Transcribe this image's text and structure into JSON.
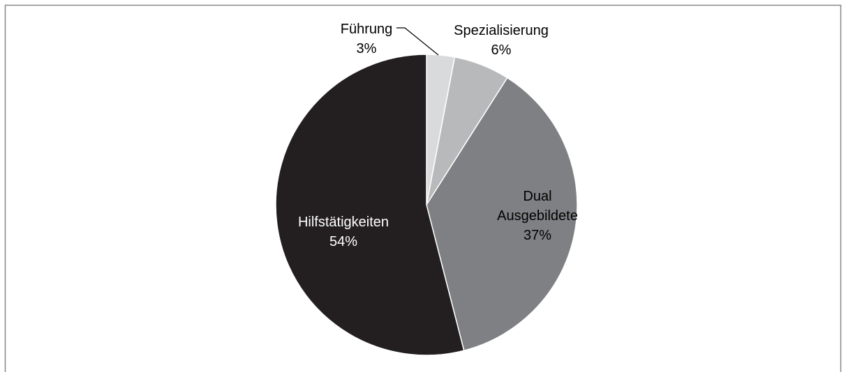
{
  "chart_data": {
    "type": "pie",
    "categories": [
      "Führung",
      "Spezialisierung",
      "Dual Ausgebildete",
      "Hilfstätigkeiten"
    ],
    "values": [
      3,
      6,
      37,
      54
    ],
    "value_labels": [
      "3%",
      "6%",
      "37%",
      "54%"
    ],
    "colors": [
      "#d9dadc",
      "#b8b9bb",
      "#7f8083",
      "#231f20"
    ]
  }
}
